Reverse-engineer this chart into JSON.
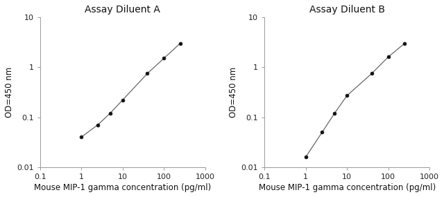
{
  "panel_A": {
    "title": "Assay Diluent A",
    "x": [
      1,
      2.5,
      5,
      10,
      40,
      100,
      250
    ],
    "y": [
      0.04,
      0.07,
      0.12,
      0.22,
      0.75,
      1.5,
      3.0
    ]
  },
  "panel_B": {
    "title": "Assay Diluent B",
    "x": [
      1,
      2.5,
      5,
      10,
      40,
      100,
      250
    ],
    "y": [
      0.016,
      0.05,
      0.12,
      0.27,
      0.75,
      1.6,
      3.0
    ]
  },
  "xlabel": "Mouse MIP-1 gamma concentration (pg/ml)",
  "ylabel": "OD=450 nm",
  "xlim": [
    0.1,
    1000
  ],
  "ylim": [
    0.01,
    10
  ],
  "xticks": [
    0.1,
    1,
    10,
    100,
    1000
  ],
  "xtick_labels": [
    "0.1",
    "1",
    "10",
    "100",
    "1000"
  ],
  "yticks": [
    0.01,
    0.1,
    1,
    10
  ],
  "ytick_labels": [
    "0.01",
    "0.1",
    "1",
    "10"
  ],
  "line_color": "#666666",
  "marker_color": "#111111",
  "bg_color": "#ffffff",
  "fig_color": "#ffffff",
  "spine_color": "#999999",
  "title_fontsize": 10,
  "label_fontsize": 8.5,
  "tick_fontsize": 8
}
